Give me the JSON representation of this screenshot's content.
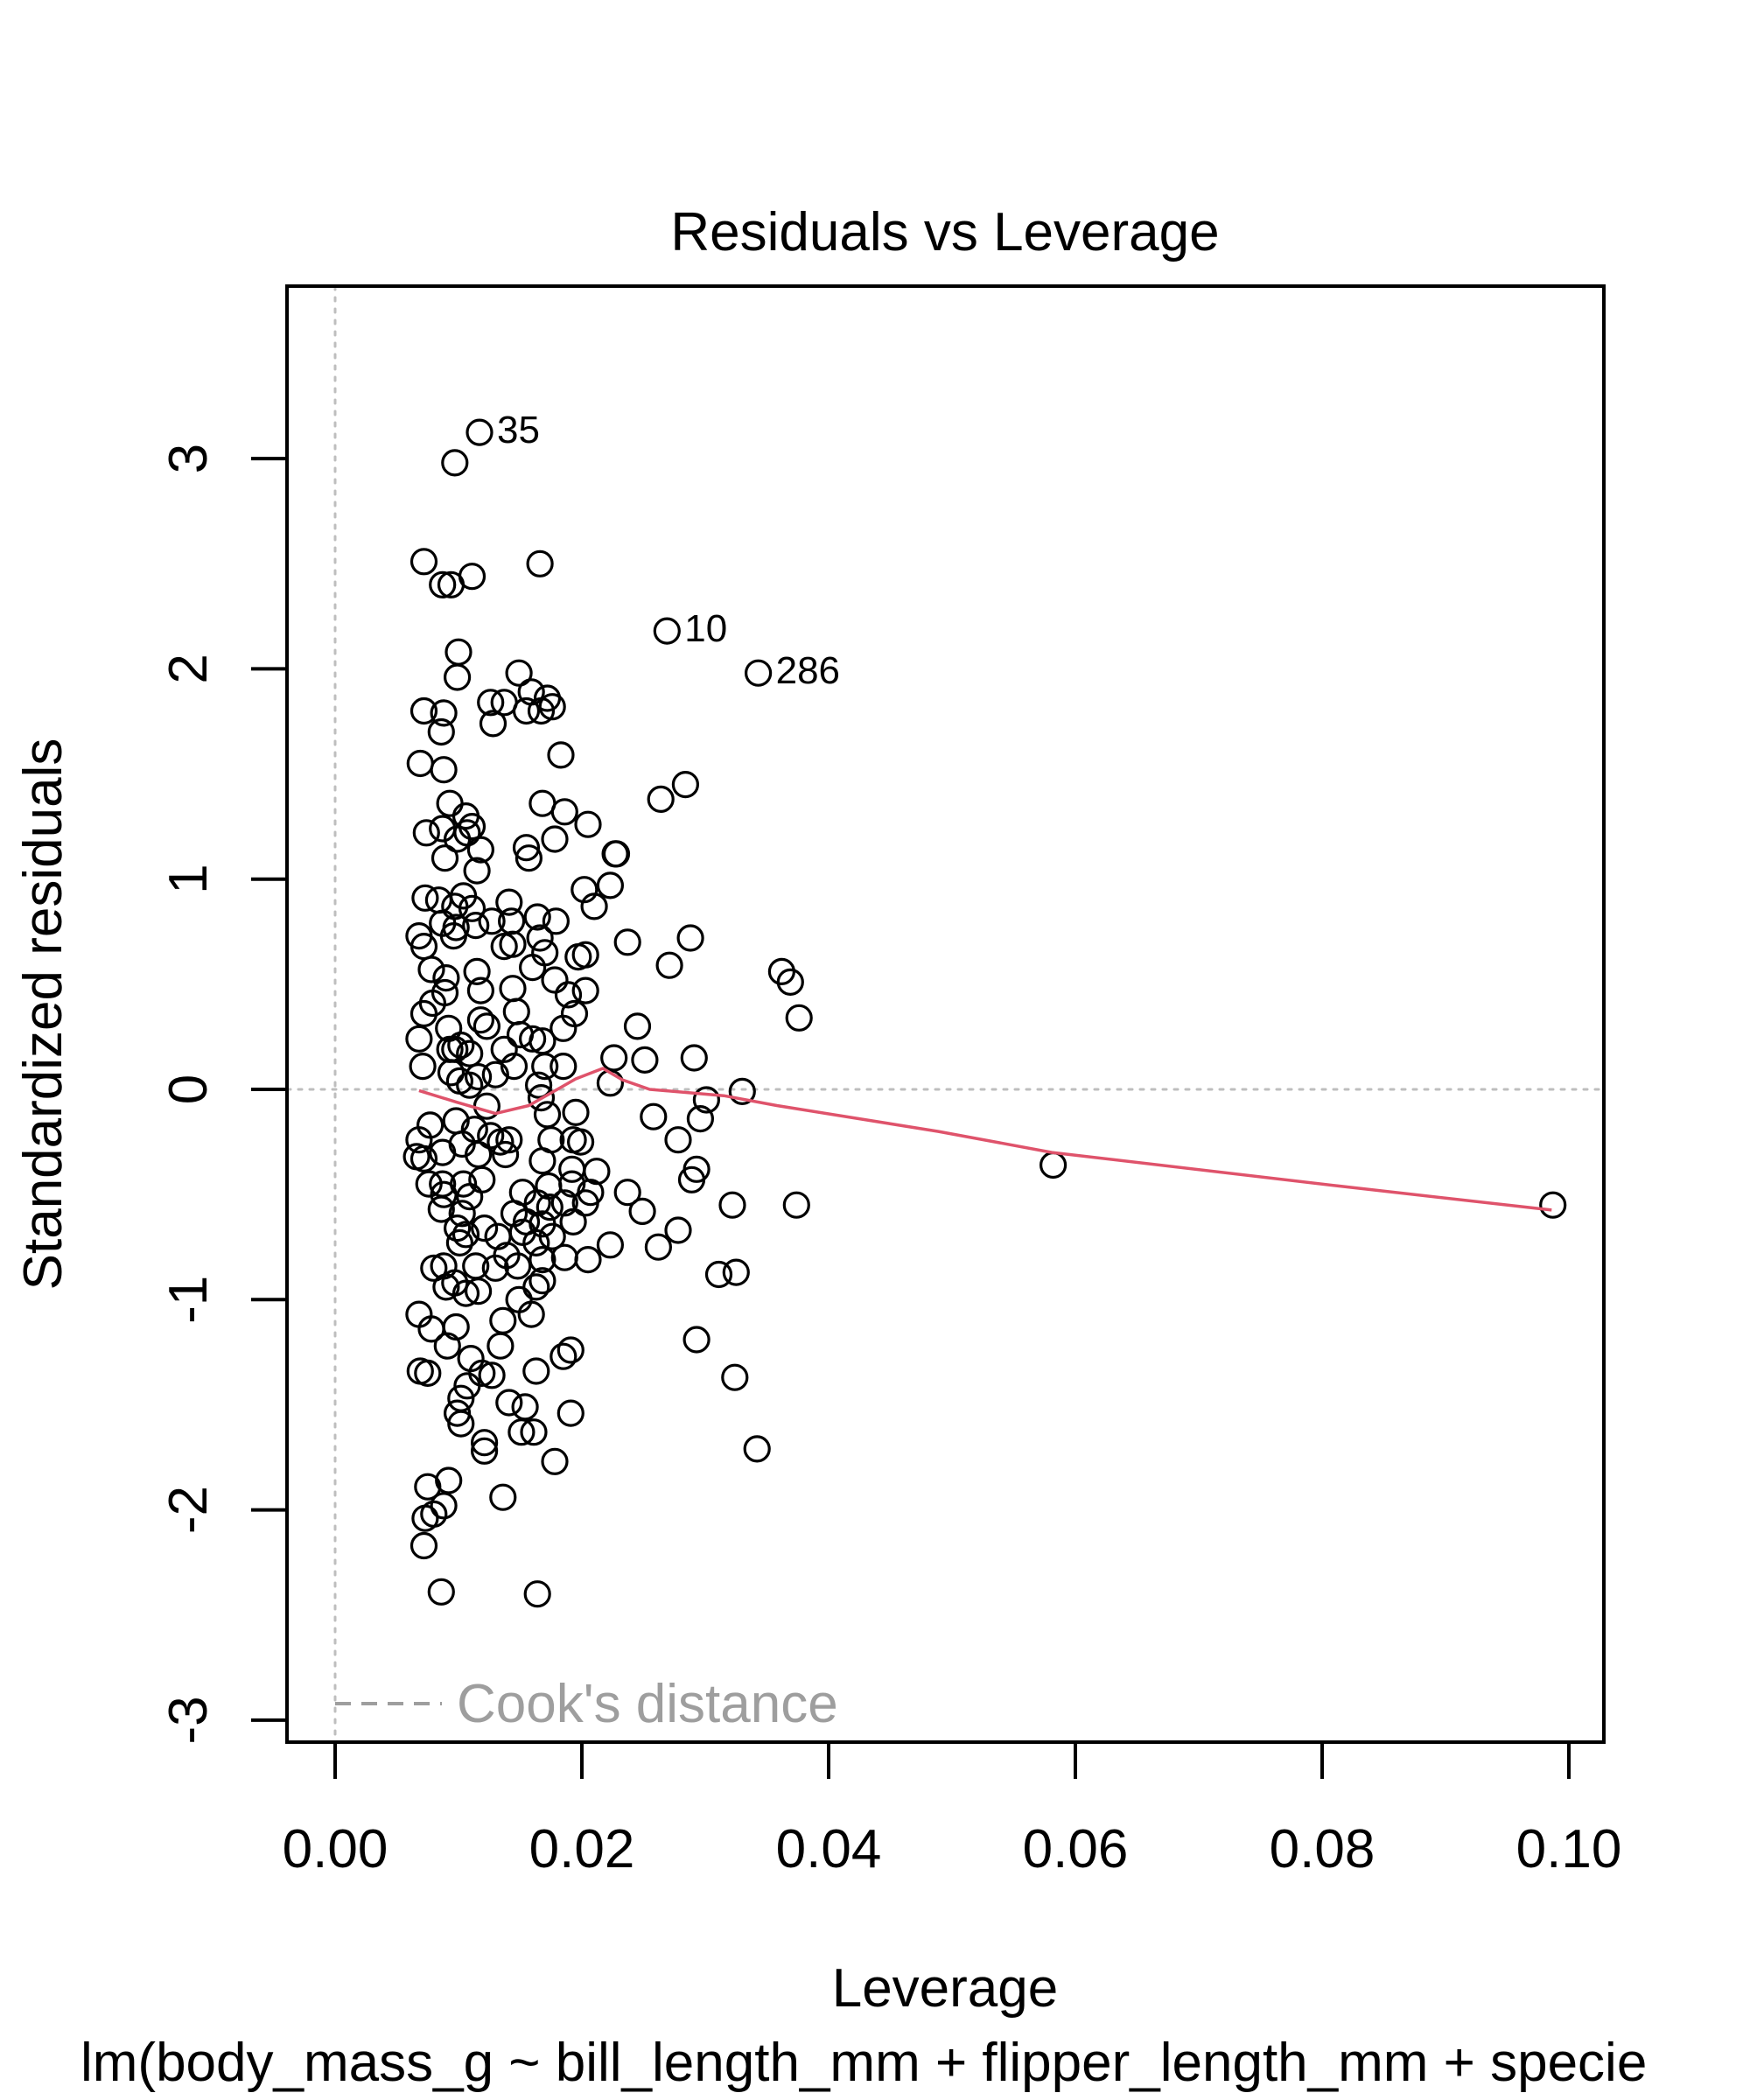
{
  "chart_data": {
    "type": "scatter",
    "title": "Residuals vs Leverage",
    "xlabel": "Leverage",
    "ylabel": "Standardized residuals",
    "caption": "lm(body_mass_g ~ bill_length_mm + flipper_length_mm + specie",
    "xlim": [
      -0.0035,
      0.1025
    ],
    "ylim": [
      -3.1,
      3.8
    ],
    "x_ticks": [
      0.0,
      0.02,
      0.04,
      0.06,
      0.08,
      0.1
    ],
    "x_tick_labels": [
      "0.00",
      "0.02",
      "0.04",
      "0.06",
      "0.08",
      "0.10"
    ],
    "y_ticks": [
      -3,
      -2,
      -1,
      0,
      1,
      2,
      3
    ],
    "y_tick_labels": [
      "-3",
      "-2",
      "-1",
      "0",
      "1",
      "2",
      "3"
    ],
    "legend": {
      "label": "Cook's distance",
      "position": "bottom-left"
    },
    "colors": {
      "points": "#000000",
      "smooth": "#DF536B",
      "reference": "#BEBEBE",
      "legend": "#9E9E9E"
    },
    "labeled_points": [
      {
        "label": "35",
        "x": 0.0117,
        "y": 3.125
      },
      {
        "label": "10",
        "x": 0.0269,
        "y": 2.18
      },
      {
        "label": "286",
        "x": 0.0343,
        "y": 1.98
      }
    ],
    "smooth_line": [
      [
        0.0068,
        -0.006
      ],
      [
        0.0098,
        -0.06
      ],
      [
        0.013,
        -0.115
      ],
      [
        0.0157,
        -0.077
      ],
      [
        0.0195,
        0.05
      ],
      [
        0.0217,
        0.1
      ],
      [
        0.0233,
        0.045
      ],
      [
        0.0255,
        0.0
      ],
      [
        0.0315,
        -0.03
      ],
      [
        0.0358,
        -0.077
      ],
      [
        0.0489,
        -0.2
      ],
      [
        0.0581,
        -0.3
      ],
      [
        0.0814,
        -0.46
      ],
      [
        0.0986,
        -0.574
      ]
    ],
    "points": [
      [
        0.0097,
        2.98
      ],
      [
        0.0072,
        2.51
      ],
      [
        0.0166,
        2.5
      ],
      [
        0.0111,
        2.44
      ],
      [
        0.0087,
        2.4
      ],
      [
        0.0094,
        2.4
      ],
      [
        0.01,
        2.08
      ],
      [
        0.0149,
        1.98
      ],
      [
        0.0099,
        1.96
      ],
      [
        0.0072,
        1.8
      ],
      [
        0.0126,
        1.84
      ],
      [
        0.0137,
        1.84
      ],
      [
        0.0159,
        1.89
      ],
      [
        0.0172,
        1.86
      ],
      [
        0.0176,
        1.82
      ],
      [
        0.0155,
        1.8
      ],
      [
        0.0128,
        1.74
      ],
      [
        0.0167,
        1.8
      ],
      [
        0.0086,
        1.7
      ],
      [
        0.0088,
        1.79
      ],
      [
        0.0183,
        1.59
      ],
      [
        0.0069,
        1.55
      ],
      [
        0.0088,
        1.52
      ],
      [
        0.0284,
        1.45
      ],
      [
        0.0264,
        1.38
      ],
      [
        0.0168,
        1.36
      ],
      [
        0.0093,
        1.36
      ],
      [
        0.0186,
        1.32
      ],
      [
        0.0106,
        1.3
      ],
      [
        0.0074,
        1.22
      ],
      [
        0.0111,
        1.25
      ],
      [
        0.0205,
        1.26
      ],
      [
        0.0087,
        1.24
      ],
      [
        0.0099,
        1.19
      ],
      [
        0.0107,
        1.22
      ],
      [
        0.0118,
        1.14
      ],
      [
        0.0155,
        1.15
      ],
      [
        0.0157,
        1.1
      ],
      [
        0.0227,
        1.12
      ],
      [
        0.0228,
        1.12
      ],
      [
        0.0178,
        1.19
      ],
      [
        0.0089,
        1.1
      ],
      [
        0.0115,
        1.04
      ],
      [
        0.0223,
        0.97
      ],
      [
        0.0073,
        0.91
      ],
      [
        0.0104,
        0.92
      ],
      [
        0.0202,
        0.95
      ],
      [
        0.021,
        0.87
      ],
      [
        0.0084,
        0.9
      ],
      [
        0.0097,
        0.87
      ],
      [
        0.0141,
        0.89
      ],
      [
        0.0127,
        0.8
      ],
      [
        0.0143,
        0.8
      ],
      [
        0.0111,
        0.86
      ],
      [
        0.0164,
        0.82
      ],
      [
        0.0179,
        0.8
      ],
      [
        0.0068,
        0.73
      ],
      [
        0.0114,
        0.78
      ],
      [
        0.0098,
        0.77
      ],
      [
        0.0087,
        0.79
      ],
      [
        0.0072,
        0.68
      ],
      [
        0.0096,
        0.73
      ],
      [
        0.0237,
        0.7
      ],
      [
        0.0288,
        0.72
      ],
      [
        0.0166,
        0.72
      ],
      [
        0.017,
        0.65
      ],
      [
        0.0144,
        0.69
      ],
      [
        0.0137,
        0.68
      ],
      [
        0.0271,
        0.59
      ],
      [
        0.0362,
        0.56
      ],
      [
        0.0369,
        0.51
      ],
      [
        0.0197,
        0.63
      ],
      [
        0.0203,
        0.64
      ],
      [
        0.016,
        0.58
      ],
      [
        0.0078,
        0.57
      ],
      [
        0.0115,
        0.56
      ],
      [
        0.009,
        0.53
      ],
      [
        0.0118,
        0.47
      ],
      [
        0.0178,
        0.52
      ],
      [
        0.0089,
        0.46
      ],
      [
        0.0144,
        0.48
      ],
      [
        0.0189,
        0.45
      ],
      [
        0.0147,
        0.37
      ],
      [
        0.0203,
        0.47
      ],
      [
        0.0072,
        0.36
      ],
      [
        0.0079,
        0.41
      ],
      [
        0.0068,
        0.24
      ],
      [
        0.0118,
        0.33
      ],
      [
        0.0123,
        0.3
      ],
      [
        0.016,
        0.24
      ],
      [
        0.0168,
        0.23
      ],
      [
        0.0185,
        0.29
      ],
      [
        0.0245,
        0.3
      ],
      [
        0.0376,
        0.34
      ],
      [
        0.0092,
        0.29
      ],
      [
        0.0102,
        0.21
      ],
      [
        0.0137,
        0.19
      ],
      [
        0.015,
        0.26
      ],
      [
        0.0194,
        0.36
      ],
      [
        0.0093,
        0.19
      ],
      [
        0.0097,
        0.19
      ],
      [
        0.0109,
        0.17
      ],
      [
        0.0145,
        0.11
      ],
      [
        0.0226,
        0.15
      ],
      [
        0.0251,
        0.14
      ],
      [
        0.0291,
        0.15
      ],
      [
        0.0071,
        0.11
      ],
      [
        0.017,
        0.11
      ],
      [
        0.0185,
        0.11
      ],
      [
        0.0094,
        0.08
      ],
      [
        0.013,
        0.07
      ],
      [
        0.0101,
        0.04
      ],
      [
        0.0109,
        0.02
      ],
      [
        0.0116,
        0.06
      ],
      [
        0.0223,
        0.03
      ],
      [
        0.0165,
        0.02
      ],
      [
        0.033,
        -0.01
      ],
      [
        0.0301,
        -0.05
      ],
      [
        0.0167,
        -0.04
      ],
      [
        0.0195,
        -0.11
      ],
      [
        0.0123,
        -0.08
      ],
      [
        0.0172,
        -0.12
      ],
      [
        0.0258,
        -0.13
      ],
      [
        0.0296,
        -0.14
      ],
      [
        0.0098,
        -0.15
      ],
      [
        0.0113,
        -0.19
      ],
      [
        0.0126,
        -0.22
      ],
      [
        0.0134,
        -0.25
      ],
      [
        0.0077,
        -0.17
      ],
      [
        0.0068,
        -0.24
      ],
      [
        0.0103,
        -0.26
      ],
      [
        0.0141,
        -0.24
      ],
      [
        0.0175,
        -0.24
      ],
      [
        0.0193,
        -0.24
      ],
      [
        0.0199,
        -0.25
      ],
      [
        0.0278,
        -0.24
      ],
      [
        0.0072,
        -0.33
      ],
      [
        0.0087,
        -0.3
      ],
      [
        0.0116,
        -0.31
      ],
      [
        0.0138,
        -0.31
      ],
      [
        0.0168,
        -0.34
      ],
      [
        0.0066,
        -0.32
      ],
      [
        0.0293,
        -0.38
      ],
      [
        0.0289,
        -0.43
      ],
      [
        0.0582,
        -0.36
      ],
      [
        0.0192,
        -0.38
      ],
      [
        0.0212,
        -0.39
      ],
      [
        0.0076,
        -0.45
      ],
      [
        0.0087,
        -0.45
      ],
      [
        0.0104,
        -0.45
      ],
      [
        0.0119,
        -0.43
      ],
      [
        0.0173,
        -0.46
      ],
      [
        0.0192,
        -0.45
      ],
      [
        0.0207,
        -0.49
      ],
      [
        0.0237,
        -0.49
      ],
      [
        0.0249,
        -0.58
      ],
      [
        0.0322,
        -0.55
      ],
      [
        0.0374,
        -0.55
      ],
      [
        0.0088,
        -0.5
      ],
      [
        0.0109,
        -0.51
      ],
      [
        0.0152,
        -0.49
      ],
      [
        0.0164,
        -0.54
      ],
      [
        0.0174,
        -0.56
      ],
      [
        0.0186,
        -0.54
      ],
      [
        0.0203,
        -0.54
      ],
      [
        0.0987,
        -0.55
      ],
      [
        0.0086,
        -0.57
      ],
      [
        0.0103,
        -0.59
      ],
      [
        0.0145,
        -0.59
      ],
      [
        0.0155,
        -0.63
      ],
      [
        0.0168,
        -0.64
      ],
      [
        0.0099,
        -0.66
      ],
      [
        0.0193,
        -0.63
      ],
      [
        0.0106,
        -0.69
      ],
      [
        0.0121,
        -0.66
      ],
      [
        0.0132,
        -0.7
      ],
      [
        0.0152,
        -0.68
      ],
      [
        0.0163,
        -0.73
      ],
      [
        0.0176,
        -0.7
      ],
      [
        0.0278,
        -0.67
      ],
      [
        0.0223,
        -0.74
      ],
      [
        0.0205,
        -0.81
      ],
      [
        0.0262,
        -0.75
      ],
      [
        0.0101,
        -0.73
      ],
      [
        0.0139,
        -0.79
      ],
      [
        0.013,
        -0.85
      ],
      [
        0.0148,
        -0.84
      ],
      [
        0.0168,
        -0.81
      ],
      [
        0.0186,
        -0.8
      ],
      [
        0.0114,
        -0.84
      ],
      [
        0.008,
        -0.85
      ],
      [
        0.0088,
        -0.84
      ],
      [
        0.0097,
        -0.92
      ],
      [
        0.0168,
        -0.91
      ],
      [
        0.0311,
        -0.88
      ],
      [
        0.0325,
        -0.87
      ],
      [
        0.009,
        -0.94
      ],
      [
        0.0106,
        -0.97
      ],
      [
        0.0116,
        -0.96
      ],
      [
        0.0149,
        -1.0
      ],
      [
        0.0068,
        -1.07
      ],
      [
        0.0078,
        -1.14
      ],
      [
        0.0098,
        -1.13
      ],
      [
        0.0136,
        -1.1
      ],
      [
        0.0159,
        -1.07
      ],
      [
        0.0163,
        -0.94
      ],
      [
        0.0091,
        -1.22
      ],
      [
        0.0191,
        -1.24
      ],
      [
        0.0185,
        -1.27
      ],
      [
        0.0293,
        -1.19
      ],
      [
        0.0075,
        -1.35
      ],
      [
        0.011,
        -1.28
      ],
      [
        0.0134,
        -1.22
      ],
      [
        0.0119,
        -1.35
      ],
      [
        0.0107,
        -1.41
      ],
      [
        0.0127,
        -1.36
      ],
      [
        0.0163,
        -1.34
      ],
      [
        0.0324,
        -1.37
      ],
      [
        0.0069,
        -1.34
      ],
      [
        0.0102,
        -1.47
      ],
      [
        0.0141,
        -1.49
      ],
      [
        0.0154,
        -1.51
      ],
      [
        0.0191,
        -1.54
      ],
      [
        0.0099,
        -1.54
      ],
      [
        0.0102,
        -1.59
      ],
      [
        0.0151,
        -1.63
      ],
      [
        0.0161,
        -1.63
      ],
      [
        0.0342,
        -1.71
      ],
      [
        0.0121,
        -1.68
      ],
      [
        0.0121,
        -1.72
      ],
      [
        0.0178,
        -1.77
      ],
      [
        0.0075,
        -1.89
      ],
      [
        0.0092,
        -1.86
      ],
      [
        0.0136,
        -1.94
      ],
      [
        0.0088,
        -1.98
      ],
      [
        0.0073,
        -2.04
      ],
      [
        0.008,
        -2.02
      ],
      [
        0.0072,
        -2.17
      ],
      [
        0.0086,
        -2.39
      ],
      [
        0.0164,
        -2.4
      ]
    ]
  }
}
